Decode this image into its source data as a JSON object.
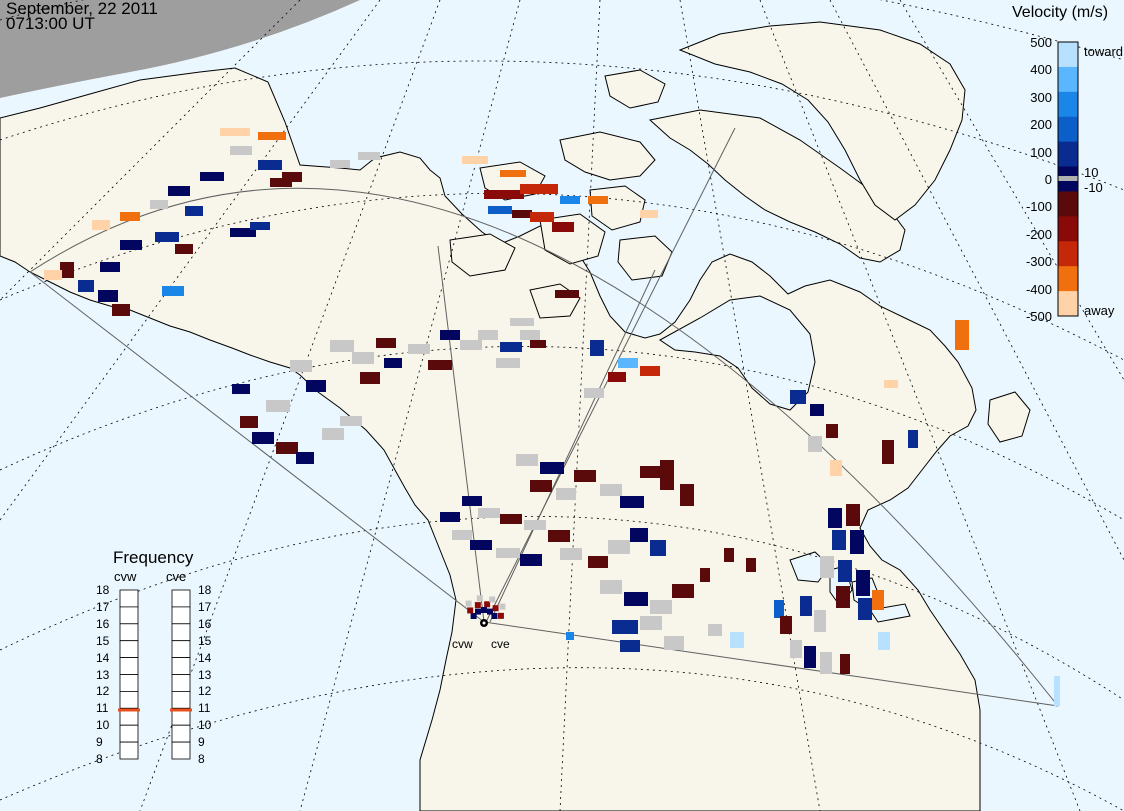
{
  "header": {
    "date": "September, 22 2011",
    "time": "0713:00 UT"
  },
  "velocity_scale": {
    "title": "Velocity (m/s)",
    "ticks": [
      "500",
      "400",
      "300",
      "200",
      "100",
      "0",
      "-100",
      "-200",
      "-300",
      "-400",
      "-500"
    ],
    "small_ticks": [
      "10",
      "-10"
    ],
    "toward_label": "toward",
    "away_label": "away",
    "colors": [
      "#b8e0ff",
      "#5ab7ff",
      "#1a86e8",
      "#0c5fc8",
      "#0a2c90",
      "#02065f",
      "#5a0a0a",
      "#8a0a0a",
      "#c42808",
      "#f07010",
      "#ffd2a8"
    ]
  },
  "frequency": {
    "title": "Frequency",
    "radars": [
      "cvw",
      "cve"
    ],
    "ticks": [
      "18",
      "17",
      "16",
      "15",
      "14",
      "13",
      "12",
      "11",
      "10",
      "9",
      "8"
    ],
    "cvw_mhz": 10.9,
    "cve_mhz": 10.9,
    "marker_color": "#e8501e"
  },
  "stations": [
    "cvw",
    "cve"
  ],
  "colors": {
    "ocean": "#eaf7ff",
    "land": "#f8f6ea",
    "night": "#9e9e9e",
    "ground_scatter": "#c8c8c8",
    "coast": "#000000",
    "grid": "#000000"
  }
}
